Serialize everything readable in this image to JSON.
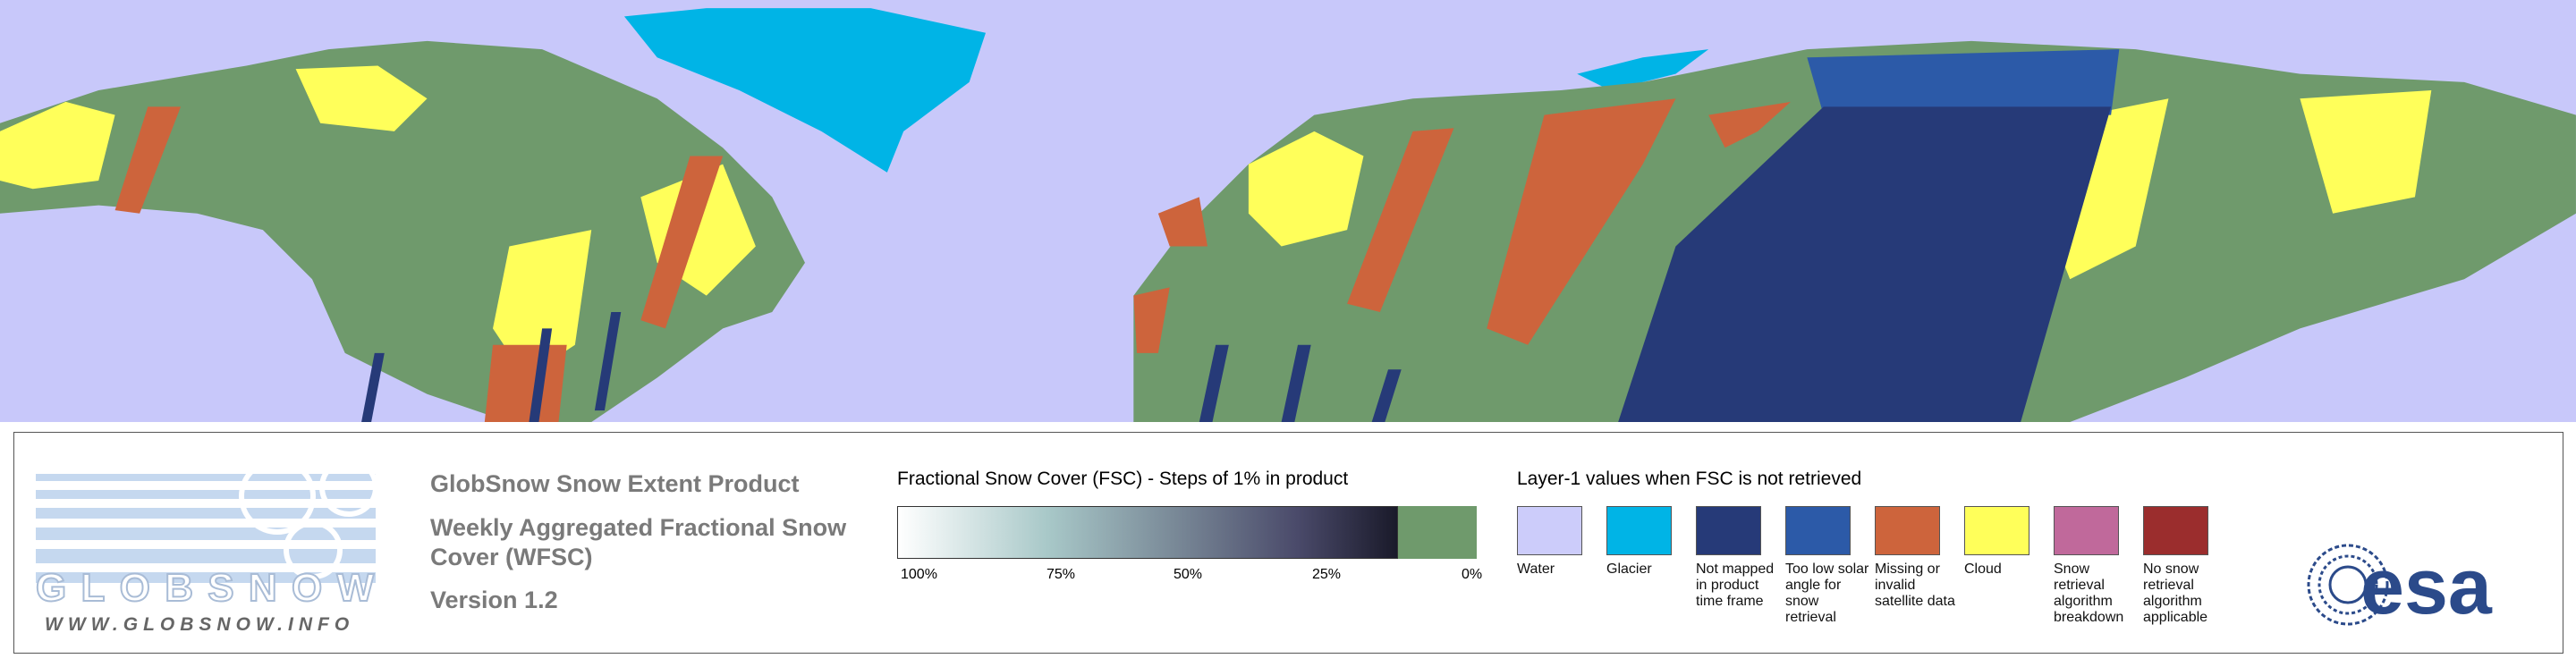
{
  "logo": {
    "name": "GLOBSNOW",
    "url": "WWW.GLOBSNOW.INFO"
  },
  "product": {
    "title": "GlobSnow Snow Extent Product",
    "subtitle": "Weekly Aggregated Fractional Snow Cover (WFSC)",
    "version": "Version 1.2"
  },
  "fsc_scale": {
    "title": "Fractional Snow Cover (FSC) - Steps of 1% in product",
    "ticks": [
      "100%",
      "75%",
      "50%",
      "25%",
      "0%"
    ],
    "no_snow_color": "#6f9a6c"
  },
  "layer1": {
    "title": "Layer-1 values when FSC is not retrieved",
    "classes": [
      {
        "label": "Water",
        "color": "#ccccfa"
      },
      {
        "label": "Glacier",
        "color": "#00b4e6"
      },
      {
        "label": "Not mapped in product time frame",
        "color": "#263a78"
      },
      {
        "label": "Too low solar angle for snow retrieval",
        "color": "#2c5aa8"
      },
      {
        "label": "Missing or invalid satellite data",
        "color": "#cd643c"
      },
      {
        "label": "Cloud",
        "color": "#ffff5a"
      },
      {
        "label": "Snow retrieval algorithm breakdown",
        "color": "#c0699b"
      },
      {
        "label": "No snow retrieval algorithm applicable",
        "color": "#9b2d2d"
      }
    ]
  },
  "esa": "esa"
}
